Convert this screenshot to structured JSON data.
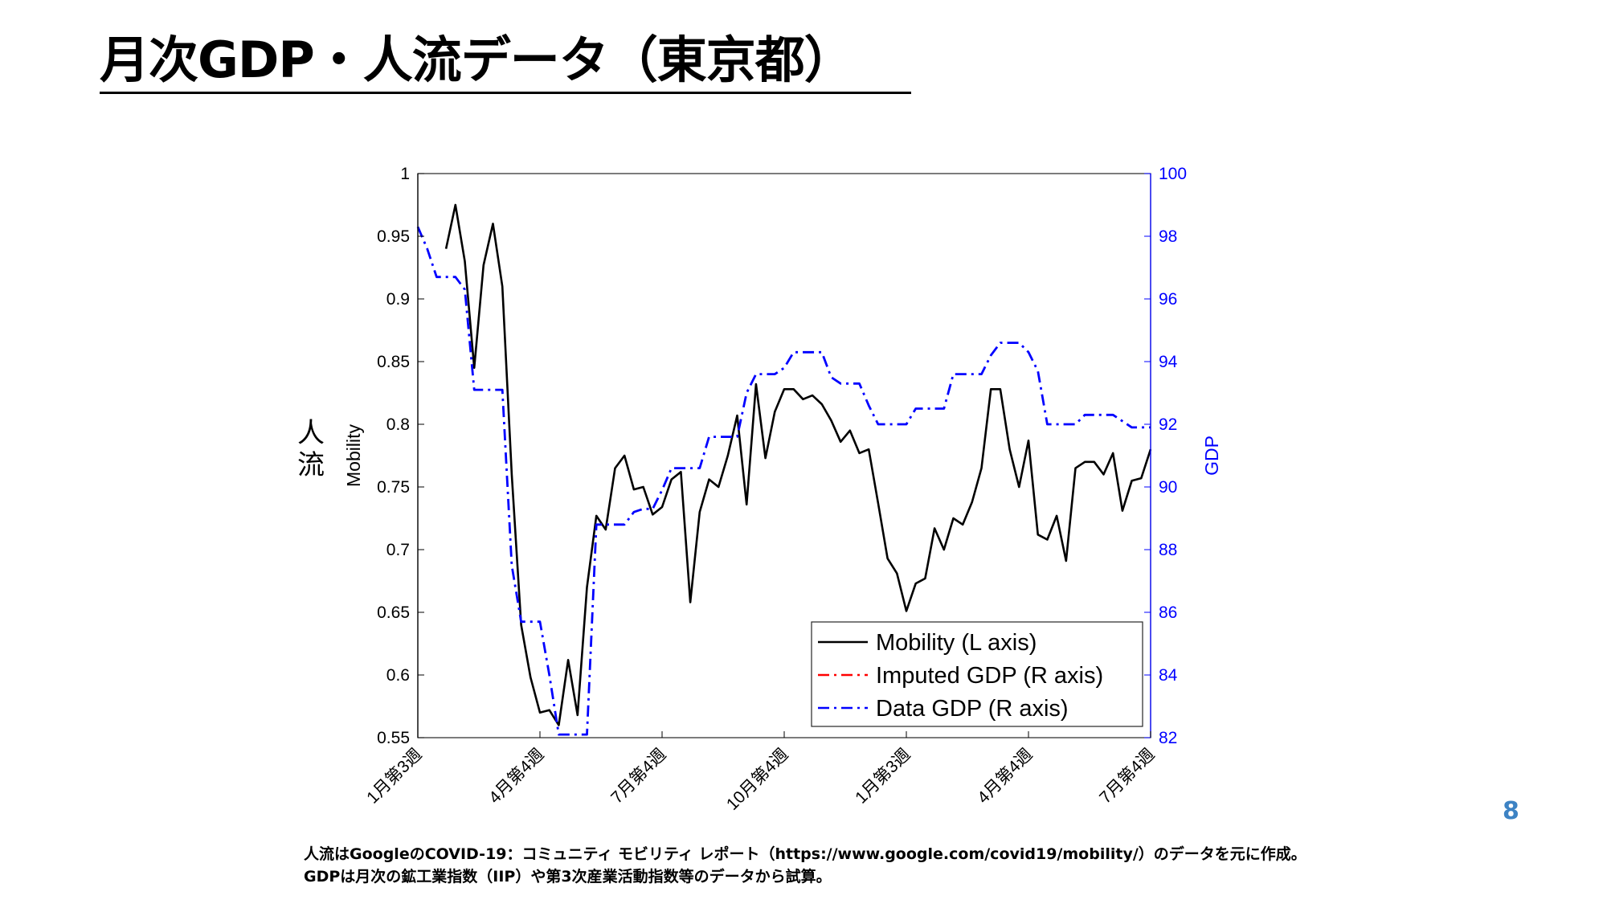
{
  "slide": {
    "title": "月次GDP・人流データ（東京都）",
    "page_number": "8",
    "footnotes": [
      "人流はGoogleのCOVID-19：コミュニティ モビリティ レポート（https://www.google.com/covid19/mobility/）のデータを元に作成。",
      "GDPは月次の鉱工業指数（IIP）や第3次産業活動指数等のデータから試算。"
    ]
  },
  "chart_data": {
    "type": "line",
    "left_axis_side_label": "人流",
    "left_axis_label": "Mobility",
    "right_axis_label": "GDP",
    "left_ylim": [
      0.55,
      1.0
    ],
    "right_ylim": [
      82,
      100
    ],
    "left_yticks": [
      "1",
      "0.95",
      "0.9",
      "0.85",
      "0.8",
      "0.75",
      "0.7",
      "0.65",
      "0.6",
      "0.55"
    ],
    "right_yticks": [
      "100",
      "98",
      "96",
      "94",
      "92",
      "90",
      "88",
      "86",
      "84",
      "82"
    ],
    "left_ytick_values": [
      1.0,
      0.95,
      0.9,
      0.85,
      0.8,
      0.75,
      0.7,
      0.65,
      0.6,
      0.55
    ],
    "right_ytick_values": [
      100,
      98,
      96,
      94,
      92,
      90,
      88,
      86,
      84,
      82
    ],
    "xlim": [
      0,
      78
    ],
    "xtick_positions": [
      0,
      13,
      26,
      39,
      52,
      65,
      78
    ],
    "xtick_labels": [
      "1月第3週",
      "4月第4週",
      "7月第4週",
      "10月第4週",
      "1月第3週",
      "4月第4週",
      "7月第4週"
    ],
    "grid": false,
    "legend_position": "bottom-right",
    "colors": {
      "left_axis": "#000000",
      "right_axis": "#0000ff"
    },
    "series": [
      {
        "name": "Mobility (L axis)",
        "axis": "left",
        "color": "#000000",
        "style": "solid",
        "x": [
          3,
          4,
          5,
          6,
          7,
          8,
          9,
          10,
          11,
          12,
          13,
          14,
          15,
          16,
          17,
          18,
          19,
          20,
          21,
          22,
          23,
          24,
          25,
          26,
          27,
          28,
          29,
          30,
          31,
          32,
          33,
          34,
          35,
          36,
          37,
          38,
          39,
          40,
          41,
          42,
          43,
          44,
          45,
          46,
          47,
          48,
          49,
          50,
          51,
          52,
          53,
          54,
          55,
          56,
          57,
          58,
          59,
          60,
          61,
          62,
          63,
          64,
          65,
          66,
          67,
          68,
          69,
          70,
          71,
          72,
          73,
          74,
          75,
          76,
          77,
          78
        ],
        "values": [
          0.94,
          0.975,
          0.93,
          0.845,
          0.927,
          0.96,
          0.91,
          0.76,
          0.64,
          0.598,
          0.57,
          0.572,
          0.56,
          0.612,
          0.568,
          0.67,
          0.727,
          0.716,
          0.765,
          0.775,
          0.748,
          0.75,
          0.728,
          0.734,
          0.756,
          0.762,
          0.658,
          0.73,
          0.756,
          0.75,
          0.775,
          0.807,
          0.736,
          0.832,
          0.773,
          0.81,
          0.828,
          0.828,
          0.82,
          0.823,
          0.816,
          0.803,
          0.786,
          0.795,
          0.777,
          0.78,
          0.737,
          0.693,
          0.681,
          0.651,
          0.673,
          0.677,
          0.717,
          0.7,
          0.725,
          0.72,
          0.738,
          0.765,
          0.828,
          0.828,
          0.78,
          0.75,
          0.787,
          0.712,
          0.708,
          0.727,
          0.691,
          0.765,
          0.77,
          0.77,
          0.76,
          0.777,
          0.731,
          0.755,
          0.757,
          0.78
        ]
      },
      {
        "name": "Imputed GDP (R axis)",
        "axis": "right",
        "color": "#ff0000",
        "style": "dashdot",
        "x": [],
        "values": []
      },
      {
        "name": "Data GDP (R axis)",
        "axis": "right",
        "color": "#0000ff",
        "style": "dashdot",
        "x": [
          0,
          1,
          2,
          3,
          4,
          5,
          6,
          7,
          8,
          9,
          10,
          11,
          12,
          13,
          14,
          15,
          16,
          17,
          18,
          19,
          20,
          21,
          22,
          23,
          24,
          25,
          26,
          27,
          28,
          29,
          30,
          31,
          32,
          33,
          34,
          35,
          36,
          37,
          38,
          39,
          40,
          41,
          42,
          43,
          44,
          45,
          46,
          47,
          48,
          49,
          50,
          51,
          52,
          53,
          54,
          55,
          56,
          57,
          58,
          59,
          60,
          61,
          62,
          63,
          64,
          65,
          66,
          67,
          68,
          69,
          70,
          71,
          72,
          73,
          74,
          75,
          76,
          77,
          78
        ],
        "values": [
          98.3,
          97.6,
          96.7,
          96.7,
          96.7,
          96.3,
          93.1,
          93.1,
          93.1,
          93.1,
          87.5,
          85.7,
          85.7,
          85.7,
          84.0,
          82.1,
          82.1,
          82.1,
          82.1,
          88.8,
          88.8,
          88.8,
          88.8,
          89.2,
          89.3,
          89.3,
          89.9,
          90.6,
          90.6,
          90.6,
          90.6,
          91.6,
          91.6,
          91.6,
          91.6,
          93.0,
          93.6,
          93.6,
          93.6,
          93.8,
          94.3,
          94.3,
          94.3,
          94.3,
          93.5,
          93.3,
          93.3,
          93.3,
          92.6,
          92.0,
          92.0,
          92.0,
          92.0,
          92.5,
          92.5,
          92.5,
          92.5,
          93.6,
          93.6,
          93.6,
          93.6,
          94.2,
          94.6,
          94.6,
          94.6,
          94.3,
          93.7,
          92.0,
          92.0,
          92.0,
          92.0,
          92.3,
          92.3,
          92.3,
          92.3,
          92.1,
          91.9,
          91.9,
          91.9
        ]
      }
    ]
  }
}
